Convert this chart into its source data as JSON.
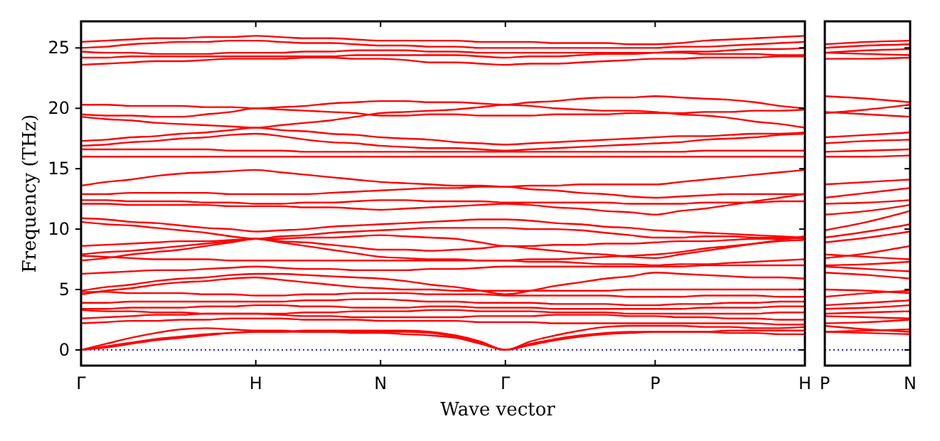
{
  "chart_data": [
    {
      "type": "line",
      "xlabel": "Wave vector",
      "ylabel": "Frequency (THz)",
      "categories": [
        "Γ",
        null,
        null,
        null,
        null,
        null,
        null,
        "H",
        null,
        null,
        null,
        null,
        "N",
        null,
        null,
        null,
        null,
        "Γ",
        null,
        null,
        null,
        null,
        null,
        "P",
        null,
        null,
        null,
        null,
        null,
        "H"
      ],
      "ylim": [
        -1.3,
        27.2
      ],
      "yticks": [
        0,
        5,
        10,
        15,
        20,
        25
      ],
      "ref_lines": [
        {
          "axis": "y",
          "value": 0,
          "color": "#0000ff",
          "line_style": "dotted"
        }
      ],
      "series": [
        {
          "color": "#ff0000",
          "values": [
            25.5,
            25.6,
            25.7,
            25.8,
            25.8,
            25.9,
            25.9,
            26.0,
            25.9,
            25.8,
            25.8,
            25.7,
            25.6,
            25.6,
            25.6,
            25.6,
            25.5,
            25.5,
            25.5,
            25.4,
            25.4,
            25.4,
            25.3,
            25.3,
            25.4,
            25.6,
            25.7,
            25.8,
            25.9,
            26.0
          ]
        },
        {
          "color": "#ff0000",
          "values": [
            25.0,
            25.1,
            25.3,
            25.4,
            25.5,
            25.5,
            25.6,
            25.6,
            25.5,
            25.4,
            25.4,
            25.3,
            25.2,
            25.2,
            25.1,
            25.1,
            25.0,
            25.0,
            25.0,
            25.0,
            25.0,
            25.0,
            25.0,
            25.0,
            25.1,
            25.1,
            25.2,
            25.3,
            25.4,
            25.5
          ]
        },
        {
          "color": "#ff0000",
          "values": [
            24.7,
            24.6,
            24.6,
            24.5,
            24.5,
            24.5,
            24.6,
            24.6,
            24.6,
            24.7,
            24.7,
            24.8,
            24.8,
            24.8,
            24.7,
            24.7,
            24.6,
            24.6,
            24.6,
            24.6,
            24.6,
            24.6,
            24.6,
            24.6,
            24.6,
            24.5,
            24.5,
            24.5,
            24.4,
            24.4
          ]
        },
        {
          "color": "#ff0000",
          "values": [
            24.2,
            24.2,
            24.3,
            24.3,
            24.3,
            24.3,
            24.3,
            24.3,
            24.3,
            24.3,
            24.3,
            24.4,
            24.4,
            24.4,
            24.4,
            24.4,
            24.3,
            24.2,
            24.3,
            24.3,
            24.4,
            24.5,
            24.5,
            24.6,
            24.7,
            24.7,
            24.8,
            24.9,
            24.9,
            25.0
          ]
        },
        {
          "color": "#ff0000",
          "values": [
            23.6,
            23.7,
            23.8,
            23.9,
            23.9,
            24.0,
            24.1,
            24.1,
            24.1,
            24.2,
            24.2,
            24.1,
            24.1,
            24.0,
            23.8,
            23.8,
            23.7,
            23.6,
            23.7,
            23.7,
            23.8,
            23.9,
            24.0,
            24.1,
            24.1,
            24.2,
            24.2,
            24.2,
            24.3,
            24.3
          ]
        },
        {
          "color": "#ff0000",
          "values": [
            20.3,
            20.3,
            20.2,
            20.2,
            20.2,
            20.1,
            20.1,
            20.0,
            20.1,
            20.2,
            20.4,
            20.5,
            20.6,
            20.6,
            20.5,
            20.5,
            20.4,
            20.3,
            20.5,
            20.6,
            20.8,
            20.9,
            20.9,
            21.0,
            20.9,
            20.8,
            20.7,
            20.5,
            20.2,
            20.0
          ]
        },
        {
          "color": "#ff0000",
          "values": [
            19.5,
            19.4,
            19.4,
            19.3,
            19.3,
            19.5,
            19.7,
            20.0,
            19.9,
            19.8,
            19.7,
            19.6,
            19.4,
            19.4,
            19.5,
            19.5,
            19.4,
            19.4,
            19.4,
            19.5,
            19.5,
            19.5,
            19.6,
            19.6,
            19.6,
            19.7,
            19.7,
            19.8,
            19.8,
            19.9
          ]
        },
        {
          "color": "#ff0000",
          "values": [
            19.3,
            19.1,
            19.0,
            18.8,
            18.7,
            18.6,
            18.5,
            18.4,
            18.6,
            18.8,
            19.0,
            19.3,
            19.6,
            19.7,
            19.8,
            19.9,
            20.1,
            20.3,
            20.2,
            20.0,
            19.9,
            19.8,
            19.8,
            19.7,
            19.5,
            19.4,
            19.2,
            18.9,
            18.7,
            18.4
          ]
        },
        {
          "color": "#ff0000",
          "values": [
            17.3,
            17.4,
            17.6,
            17.7,
            17.9,
            18.0,
            18.2,
            18.4,
            18.2,
            18.1,
            17.9,
            17.8,
            17.6,
            17.5,
            17.4,
            17.2,
            17.1,
            17.0,
            17.1,
            17.2,
            17.3,
            17.4,
            17.5,
            17.6,
            17.7,
            17.7,
            17.8,
            17.9,
            17.9,
            18.0
          ]
        },
        {
          "color": "#ff0000",
          "values": [
            16.9,
            17.0,
            17.2,
            17.3,
            17.5,
            17.6,
            17.8,
            17.9,
            17.7,
            17.4,
            17.2,
            17.1,
            16.9,
            16.8,
            16.7,
            16.7,
            16.6,
            16.5,
            16.6,
            16.7,
            16.8,
            16.9,
            17.0,
            17.1,
            17.2,
            17.4,
            17.5,
            17.6,
            17.8,
            17.9
          ]
        },
        {
          "color": "#ff0000",
          "values": [
            16.6,
            16.6,
            16.6,
            16.6,
            16.6,
            16.6,
            16.5,
            16.5,
            16.5,
            16.4,
            16.4,
            16.4,
            16.4,
            16.4,
            16.4,
            16.4,
            16.4,
            16.4,
            16.4,
            16.4,
            16.4,
            16.4,
            16.4,
            16.4,
            16.4,
            16.5,
            16.5,
            16.5,
            16.5,
            16.5
          ]
        },
        {
          "color": "#ff0000",
          "values": [
            16.0,
            16.0,
            16.0,
            16.0,
            16.0,
            16.0,
            16.0,
            16.0,
            16.0,
            16.0,
            16.0,
            16.0,
            16.0,
            16.0,
            16.0,
            16.0,
            16.0,
            16.0,
            16.0,
            16.0,
            16.0,
            16.0,
            16.0,
            16.0,
            16.0,
            16.0,
            16.0,
            16.0,
            16.0,
            16.0
          ]
        },
        {
          "color": "#ff0000",
          "values": [
            13.6,
            13.9,
            14.1,
            14.4,
            14.6,
            14.7,
            14.8,
            14.9,
            14.7,
            14.5,
            14.3,
            14.1,
            13.9,
            13.8,
            13.7,
            13.6,
            13.6,
            13.5,
            13.6,
            13.6,
            13.7,
            13.7,
            13.7,
            13.7,
            13.9,
            14.1,
            14.3,
            14.5,
            14.7,
            14.9
          ]
        },
        {
          "color": "#ff0000",
          "values": [
            12.9,
            12.9,
            13.0,
            13.0,
            13.0,
            13.0,
            12.9,
            12.9,
            12.9,
            12.9,
            13.0,
            13.1,
            13.2,
            13.3,
            13.4,
            13.4,
            13.5,
            13.5,
            13.3,
            13.2,
            13.0,
            12.9,
            12.7,
            12.6,
            12.7,
            12.8,
            12.9,
            12.9,
            12.9,
            12.9
          ]
        },
        {
          "color": "#ff0000",
          "values": [
            12.4,
            12.4,
            12.3,
            12.3,
            12.3,
            12.2,
            12.2,
            12.1,
            12.1,
            12.2,
            12.2,
            12.3,
            12.4,
            12.4,
            12.3,
            12.3,
            12.3,
            12.2,
            12.2,
            12.2,
            12.2,
            12.2,
            12.1,
            12.1,
            12.1,
            12.2,
            12.2,
            12.2,
            12.3,
            12.3
          ]
        },
        {
          "color": "#ff0000",
          "values": [
            12.1,
            12.1,
            12.0,
            12.0,
            12.0,
            12.0,
            11.9,
            11.9,
            11.9,
            11.8,
            11.8,
            11.7,
            11.6,
            11.7,
            11.8,
            11.9,
            12.0,
            12.1,
            12.0,
            11.8,
            11.7,
            11.5,
            11.4,
            11.2,
            11.5,
            11.7,
            12.0,
            12.3,
            12.6,
            12.9
          ]
        },
        {
          "color": "#ff0000",
          "values": [
            10.9,
            10.8,
            10.6,
            10.5,
            10.3,
            10.1,
            10.0,
            9.8,
            9.9,
            10.0,
            10.2,
            10.3,
            10.4,
            10.5,
            10.6,
            10.7,
            10.8,
            10.8,
            10.7,
            10.5,
            10.4,
            10.2,
            10.1,
            9.9,
            9.8,
            9.7,
            9.6,
            9.5,
            9.4,
            9.3
          ]
        },
        {
          "color": "#ff0000",
          "values": [
            10.6,
            10.4,
            10.3,
            10.1,
            9.9,
            9.7,
            9.4,
            9.2,
            9.4,
            9.5,
            9.7,
            9.8,
            9.9,
            10.0,
            10.1,
            10.1,
            10.1,
            10.1,
            10.0,
            10.0,
            9.9,
            9.7,
            9.5,
            9.3,
            9.3,
            9.4,
            9.4,
            9.3,
            9.3,
            9.2
          ]
        },
        {
          "color": "#ff0000",
          "values": [
            8.6,
            8.7,
            8.8,
            8.9,
            9.0,
            9.0,
            9.1,
            9.2,
            9.2,
            9.3,
            9.3,
            9.4,
            9.5,
            9.4,
            9.3,
            9.2,
            8.9,
            8.6,
            8.6,
            8.7,
            8.7,
            8.8,
            8.8,
            8.9,
            9.0,
            9.0,
            9.1,
            9.2,
            9.2,
            9.3
          ]
        },
        {
          "color": "#ff0000",
          "values": [
            7.9,
            8.1,
            8.2,
            8.4,
            8.6,
            8.8,
            9.0,
            9.2,
            9.0,
            8.9,
            8.7,
            8.5,
            8.3,
            8.3,
            8.2,
            8.3,
            8.4,
            8.6,
            8.4,
            8.2,
            8.0,
            7.9,
            7.7,
            7.6,
            7.9,
            8.2,
            8.5,
            8.8,
            9.1,
            9.4
          ]
        },
        {
          "color": "#ff0000",
          "values": [
            7.4,
            7.6,
            7.9,
            8.1,
            8.3,
            8.6,
            8.9,
            9.2,
            8.9,
            8.6,
            8.3,
            8.0,
            7.7,
            7.6,
            7.5,
            7.5,
            7.4,
            7.4,
            7.5,
            7.5,
            7.6,
            7.7,
            7.8,
            7.9,
            8.1,
            8.4,
            8.6,
            8.8,
            9.0,
            9.1
          ]
        },
        {
          "color": "#ff0000",
          "values": [
            7.8,
            7.7,
            7.6,
            7.5,
            7.5,
            7.5,
            7.4,
            7.4,
            7.4,
            7.4,
            7.4,
            7.4,
            7.4,
            7.4,
            7.4,
            7.4,
            7.4,
            7.4,
            7.3,
            7.3,
            7.2,
            7.1,
            7.1,
            7.0,
            7.1,
            7.1,
            7.2,
            7.3,
            7.4,
            7.5
          ]
        },
        {
          "color": "#ff0000",
          "values": [
            6.3,
            6.4,
            6.5,
            6.6,
            6.6,
            6.7,
            6.8,
            6.9,
            6.8,
            6.7,
            6.7,
            6.6,
            6.6,
            6.6,
            6.7,
            6.7,
            6.8,
            6.9,
            6.9,
            6.9,
            6.9,
            6.9,
            6.9,
            6.9,
            6.9,
            7.0,
            7.0,
            7.0,
            7.0,
            7.0
          ]
        },
        {
          "color": "#ff0000",
          "values": [
            4.9,
            5.2,
            5.4,
            5.7,
            5.9,
            6.0,
            6.2,
            6.3,
            6.3,
            6.2,
            6.1,
            6.0,
            5.9,
            5.7,
            5.4,
            5.2,
            4.9,
            4.6,
            4.9,
            5.3,
            5.6,
            5.9,
            6.1,
            6.4,
            6.3,
            6.2,
            6.1,
            6.0,
            6.0,
            5.9
          ]
        },
        {
          "color": "#ff0000",
          "values": [
            4.6,
            4.9,
            5.1,
            5.4,
            5.6,
            5.7,
            5.9,
            6.0,
            5.8,
            5.6,
            5.4,
            5.2,
            5.1,
            5.0,
            5.0,
            4.9,
            4.9,
            4.9,
            4.9,
            4.9,
            4.9,
            4.9,
            5.0,
            5.0,
            5.0,
            5.0,
            5.0,
            5.0,
            5.0,
            5.0
          ]
        },
        {
          "color": "#ff0000",
          "values": [
            4.8,
            4.8,
            4.7,
            4.7,
            4.7,
            4.6,
            4.6,
            4.5,
            4.5,
            4.6,
            4.6,
            4.7,
            4.7,
            4.7,
            4.6,
            4.6,
            4.6,
            4.5,
            4.5,
            4.5,
            4.5,
            4.5,
            4.4,
            4.4,
            4.4,
            4.5,
            4.5,
            4.5,
            4.4,
            4.4
          ]
        },
        {
          "color": "#ff0000",
          "values": [
            3.9,
            3.9,
            4.0,
            4.0,
            4.0,
            4.0,
            4.0,
            4.0,
            4.0,
            4.1,
            4.1,
            4.2,
            4.2,
            4.1,
            4.0,
            4.0,
            3.9,
            3.9,
            3.9,
            3.8,
            3.8,
            3.8,
            3.7,
            3.7,
            3.8,
            3.8,
            3.9,
            3.9,
            4.0,
            4.0
          ]
        },
        {
          "color": "#ff0000",
          "values": [
            3.4,
            3.4,
            3.5,
            3.5,
            3.5,
            3.6,
            3.6,
            3.7,
            3.7,
            3.6,
            3.6,
            3.5,
            3.5,
            3.5,
            3.6,
            3.6,
            3.5,
            3.5,
            3.5,
            3.4,
            3.4,
            3.4,
            3.4,
            3.4,
            3.4,
            3.5,
            3.5,
            3.5,
            3.6,
            3.6
          ]
        },
        {
          "color": "#ff0000",
          "values": [
            3.3,
            3.2,
            3.2,
            3.1,
            3.1,
            3.0,
            3.0,
            3.0,
            3.0,
            3.1,
            3.1,
            3.2,
            3.2,
            3.2,
            3.3,
            3.3,
            3.2,
            3.2,
            3.2,
            3.1,
            3.1,
            3.1,
            3.0,
            3.0,
            3.0,
            3.0,
            3.0,
            3.0,
            3.1,
            3.1
          ]
        },
        {
          "color": "#ff0000",
          "values": [
            2.6,
            2.7,
            2.8,
            2.9,
            2.9,
            3.0,
            3.0,
            3.0,
            2.9,
            2.8,
            2.8,
            2.7,
            2.7,
            2.7,
            2.7,
            2.7,
            2.8,
            2.8,
            2.8,
            2.9,
            2.9,
            2.9,
            2.8,
            2.8,
            2.7,
            2.7,
            2.6,
            2.6,
            2.5,
            2.5
          ]
        },
        {
          "color": "#ff0000",
          "values": [
            2.2,
            2.3,
            2.4,
            2.4,
            2.5,
            2.5,
            2.6,
            2.6,
            2.6,
            2.5,
            2.5,
            2.5,
            2.4,
            2.4,
            2.4,
            2.4,
            2.3,
            2.3,
            2.3,
            2.2,
            2.2,
            2.2,
            2.2,
            2.2,
            2.2,
            2.2,
            2.2,
            2.2,
            2.1,
            2.1
          ]
        },
        {
          "color": "#ff0000",
          "values": [
            0,
            0.3,
            0.6,
            0.9,
            1.1,
            1.3,
            1.4,
            1.5,
            1.5,
            1.5,
            1.5,
            1.5,
            1.5,
            1.5,
            1.4,
            1.1,
            0.6,
            0,
            0.5,
            0.9,
            1.2,
            1.4,
            1.5,
            1.5,
            1.5,
            1.5,
            1.4,
            1.4,
            1.3,
            1.3
          ]
        },
        {
          "color": "#ff0000",
          "values": [
            0,
            0.2,
            0.5,
            0.8,
            1.0,
            1.2,
            1.4,
            1.5,
            1.5,
            1.6,
            1.6,
            1.6,
            1.6,
            1.6,
            1.5,
            1.2,
            0.7,
            0,
            0.4,
            0.8,
            1.1,
            1.3,
            1.4,
            1.5,
            1.5,
            1.5,
            1.6,
            1.6,
            1.6,
            1.6
          ]
        },
        {
          "color": "#ff0000",
          "values": [
            0,
            0.5,
            1.0,
            1.4,
            1.7,
            1.8,
            1.7,
            1.6,
            1.6,
            1.5,
            1.5,
            1.4,
            1.4,
            1.3,
            1.2,
            1.0,
            0.5,
            0,
            0.7,
            1.2,
            1.6,
            1.9,
            2.0,
            2.0,
            2.0,
            1.9,
            1.9,
            1.8,
            1.8,
            1.9
          ]
        }
      ]
    },
    {
      "type": "line",
      "categories": [
        "P",
        null,
        "N"
      ],
      "ylim": [
        -1.3,
        27.2
      ],
      "yticks": [
        0,
        5,
        10,
        15,
        20,
        25
      ],
      "tick_labels": "x",
      "ref_lines": [
        {
          "axis": "y",
          "value": 0,
          "color": "#0000ff",
          "line_style": "dotted"
        }
      ],
      "series": [
        {
          "color": "#ff0000",
          "values": [
            25.3,
            25.5,
            25.6
          ]
        },
        {
          "color": "#ff0000",
          "values": [
            25.0,
            25.2,
            25.3
          ]
        },
        {
          "color": "#ff0000",
          "values": [
            24.6,
            24.8,
            24.9
          ]
        },
        {
          "color": "#ff0000",
          "values": [
            24.6,
            24.5,
            24.4
          ]
        },
        {
          "color": "#ff0000",
          "values": [
            24.1,
            24.1,
            24.2
          ]
        },
        {
          "color": "#ff0000",
          "values": [
            21.0,
            20.8,
            20.5
          ]
        },
        {
          "color": "#ff0000",
          "values": [
            19.6,
            19.9,
            20.3
          ]
        },
        {
          "color": "#ff0000",
          "values": [
            19.7,
            19.5,
            19.3
          ]
        },
        {
          "color": "#ff0000",
          "values": [
            17.6,
            17.8,
            18.0
          ]
        },
        {
          "color": "#ff0000",
          "values": [
            17.1,
            17.3,
            17.4
          ]
        },
        {
          "color": "#ff0000",
          "values": [
            16.4,
            16.5,
            16.6
          ]
        },
        {
          "color": "#ff0000",
          "values": [
            16.0,
            16.0,
            16.1
          ]
        },
        {
          "color": "#ff0000",
          "values": [
            13.7,
            13.9,
            14.1
          ]
        },
        {
          "color": "#ff0000",
          "values": [
            12.6,
            13.0,
            13.4
          ]
        },
        {
          "color": "#ff0000",
          "values": [
            12.1,
            12.2,
            12.4
          ]
        },
        {
          "color": "#ff0000",
          "values": [
            11.2,
            11.5,
            12.0
          ]
        },
        {
          "color": "#ff0000",
          "values": [
            9.9,
            10.6,
            11.5
          ]
        },
        {
          "color": "#ff0000",
          "values": [
            9.3,
            9.8,
            10.4
          ]
        },
        {
          "color": "#ff0000",
          "values": [
            8.9,
            9.3,
            9.8
          ]
        },
        {
          "color": "#ff0000",
          "values": [
            7.6,
            8.0,
            8.6
          ]
        },
        {
          "color": "#ff0000",
          "values": [
            7.9,
            7.7,
            7.5
          ]
        },
        {
          "color": "#ff0000",
          "values": [
            7.0,
            7.1,
            7.3
          ]
        },
        {
          "color": "#ff0000",
          "values": [
            6.9,
            6.7,
            6.5
          ]
        },
        {
          "color": "#ff0000",
          "values": [
            6.4,
            6.2,
            5.9
          ]
        },
        {
          "color": "#ff0000",
          "values": [
            5.0,
            4.9,
            4.7
          ]
        },
        {
          "color": "#ff0000",
          "values": [
            4.4,
            4.7,
            4.9
          ]
        },
        {
          "color": "#ff0000",
          "values": [
            3.7,
            3.9,
            4.1
          ]
        },
        {
          "color": "#ff0000",
          "values": [
            3.4,
            3.5,
            3.7
          ]
        },
        {
          "color": "#ff0000",
          "values": [
            3.0,
            3.1,
            3.2
          ]
        },
        {
          "color": "#ff0000",
          "values": [
            2.8,
            2.7,
            2.6
          ]
        },
        {
          "color": "#ff0000",
          "values": [
            2.2,
            2.3,
            2.5
          ]
        },
        {
          "color": "#ff0000",
          "values": [
            1.5,
            1.4,
            1.3
          ]
        },
        {
          "color": "#ff0000",
          "values": [
            1.5,
            1.6,
            1.7
          ]
        },
        {
          "color": "#ff0000",
          "values": [
            2.0,
            1.7,
            1.5
          ]
        }
      ]
    }
  ]
}
